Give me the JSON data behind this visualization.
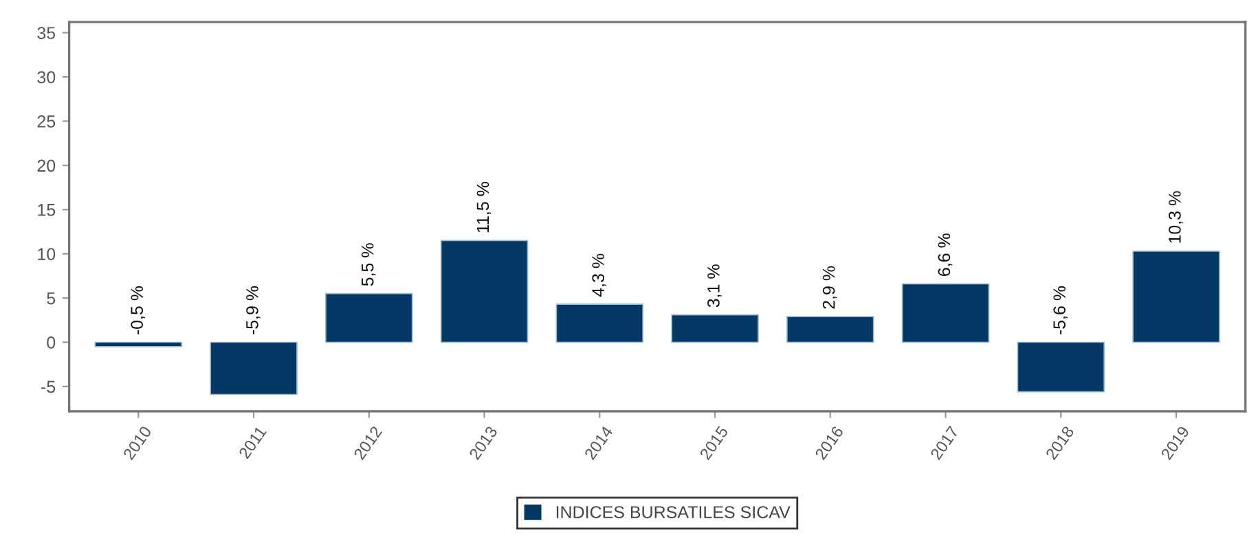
{
  "chart_data": {
    "type": "bar",
    "categories": [
      "2010",
      "2011",
      "2012",
      "2013",
      "2014",
      "2015",
      "2016",
      "2017",
      "2018",
      "2019"
    ],
    "series": [
      {
        "name": "INDICES BURSATILES SICAV",
        "color": "#033865",
        "values": [
          -0.5,
          -5.9,
          5.5,
          11.5,
          4.3,
          3.1,
          2.9,
          6.6,
          -5.6,
          10.3
        ],
        "value_labels": [
          "-0,5 %",
          "-5,9 %",
          "5,5 %",
          "11,5 %",
          "4,3 %",
          "3,1 %",
          "2,9 %",
          "6,6 %",
          "-5,6 %",
          "10,3 %"
        ]
      }
    ],
    "ylim": [
      -7.8,
      36.2
    ],
    "yticks": [
      -5,
      0,
      5,
      10,
      15,
      20,
      25,
      30,
      35
    ],
    "grid": false,
    "legend": "bottom"
  }
}
